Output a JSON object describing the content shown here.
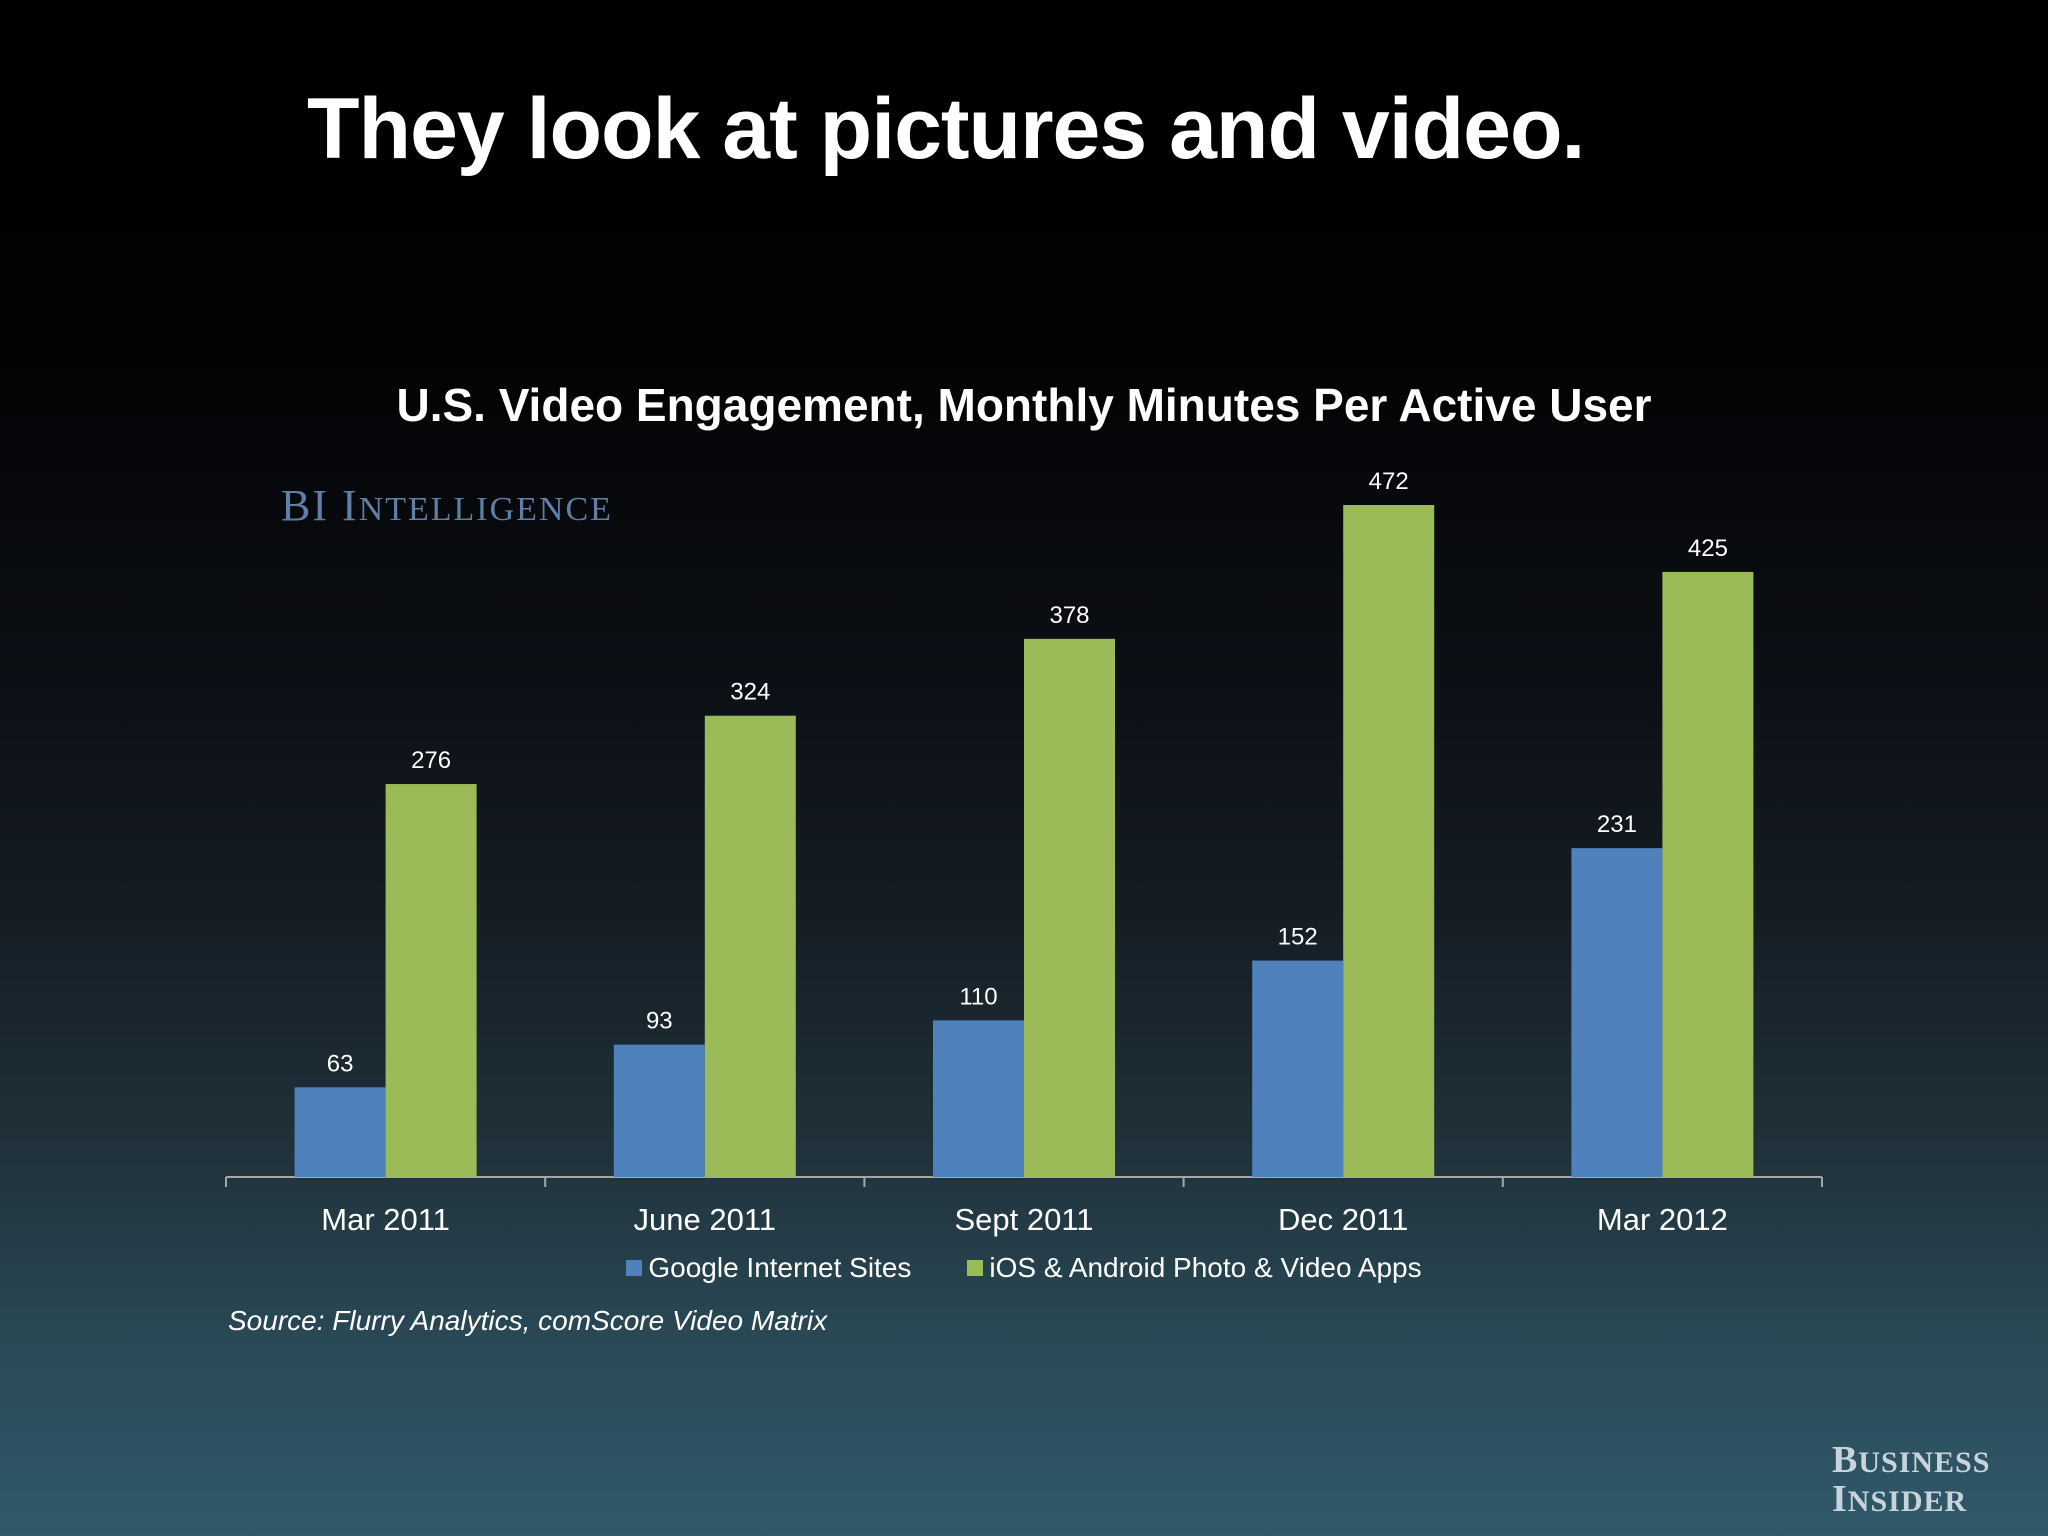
{
  "slide": {
    "title": "They look at pictures and video."
  },
  "watermark": {
    "first": "BI",
    "second_initial": "I",
    "second_rest": "NTELLIGENCE"
  },
  "logo": {
    "line1_initial": "B",
    "line1_rest": "USINESS",
    "line2_initial": "I",
    "line2_rest": "NSIDER"
  },
  "source": "Source: Flurry Analytics, comScore Video Matrix",
  "chart_data": {
    "type": "bar",
    "title": "U.S. Video Engagement, Monthly Minutes Per Active User",
    "xlabel": "",
    "ylabel": "",
    "categories": [
      "Mar 2011",
      "June 2011",
      "Sept 2011",
      "Dec 2011",
      "Mar 2012"
    ],
    "series": [
      {
        "name": "Google Internet Sites",
        "color": "#4f81bd",
        "values": [
          63,
          93,
          110,
          152,
          231
        ]
      },
      {
        "name": "iOS & Android Photo & Video Apps",
        "color": "#9bbb59",
        "values": [
          276,
          324,
          378,
          472,
          425
        ]
      }
    ],
    "ylim": [
      0,
      472
    ],
    "grid": false,
    "legend_position": "bottom",
    "data_labels": true
  }
}
